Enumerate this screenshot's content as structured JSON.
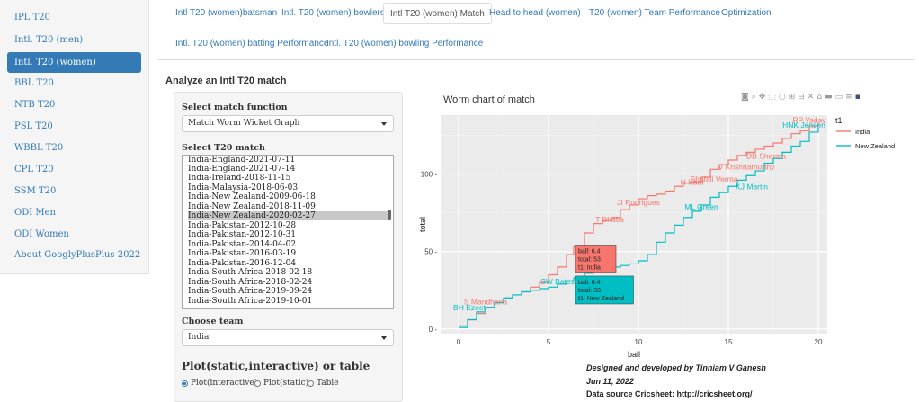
{
  "sidebar": {
    "items": [
      {
        "label": "IPL T20"
      },
      {
        "label": "Intl. T20 (men)"
      },
      {
        "label": "Intl. T20 (women)"
      },
      {
        "label": "BBL T20"
      },
      {
        "label": "NTB T20"
      },
      {
        "label": "PSL T20"
      },
      {
        "label": "WBBL T20"
      },
      {
        "label": "CPL T20"
      },
      {
        "label": "SSM T20"
      },
      {
        "label": "ODI Men"
      },
      {
        "label": "ODI Women"
      },
      {
        "label": "About GooglyPlusPlus 2022"
      }
    ]
  },
  "tabs": [
    {
      "label": "Intl T20 (women)batsman"
    },
    {
      "label": "Intl. T20 (women) bowlers"
    },
    {
      "label": "Intl T20 (women) Match"
    },
    {
      "label": "Head to head (women)"
    },
    {
      "label": "T20 (women) Team Performance"
    },
    {
      "label": "Optimization"
    },
    {
      "label": "Intl. T20 (women) batting Performance"
    },
    {
      "label": "Intl. T20 (women) bowling Performance"
    }
  ],
  "page_title": "Analyze an Intl T20 match",
  "controls": {
    "match_function_label": "Select match function",
    "match_function_value": "Match Worm Wicket Graph",
    "match_label": "Select T20 match",
    "matches": [
      "India-England-2021-07-11",
      "India-England-2021-07-14",
      "India-Ireland-2018-11-15",
      "India-Malaysia-2018-06-03",
      "India-New Zealand-2009-06-18",
      "India-New Zealand-2018-11-09",
      "India-New Zealand-2020-02-27",
      "India-Pakistan-2012-10-28",
      "India-Pakistan-2012-10-31",
      "India-Pakistan-2014-04-02",
      "India-Pakistan-2016-03-19",
      "India-Pakistan-2016-12-04",
      "India-South Africa-2018-02-18",
      "India-South Africa-2018-02-24",
      "India-South Africa-2019-09-24",
      "India-South Africa-2019-10-01"
    ],
    "selected_match": "India-New Zealand-2020-02-27",
    "team_label": "Choose team",
    "team_value": "India",
    "plot_label": "Plot(static,interactive) or table",
    "radio_options": [
      "Plot(interactive)",
      "Plot(static)",
      "Table"
    ]
  },
  "chart_data": {
    "type": "line",
    "title": "Worm chart of match",
    "xlabel": "ball",
    "ylabel": "total",
    "xlim": [
      -1,
      20.5
    ],
    "ylim": [
      -3,
      138
    ],
    "xticks": [
      0,
      5,
      10,
      15,
      20
    ],
    "yticks": [
      0,
      50,
      100
    ],
    "legend_title": "t1",
    "legend_position": "right",
    "series": [
      {
        "name": "India",
        "color": "#f8766d",
        "x": [
          0,
          0.5,
          1,
          1.5,
          2,
          2.5,
          3,
          3.5,
          4,
          4.5,
          5,
          5.5,
          6,
          6.4,
          7,
          7.5,
          8,
          8.5,
          9,
          9.5,
          10,
          10.5,
          11,
          11.5,
          12,
          12.5,
          13,
          13.5,
          14,
          14.5,
          15,
          15.5,
          16,
          16.5,
          17,
          17.5,
          18,
          18.5,
          19,
          19.5,
          20
        ],
        "y": [
          2,
          6,
          10,
          14,
          17,
          20,
          22,
          24,
          27,
          30,
          35,
          40,
          48,
          53,
          62,
          68,
          70,
          72,
          77,
          80,
          84,
          86,
          87,
          89,
          92,
          94,
          95,
          98,
          103,
          106,
          109,
          112,
          114,
          116,
          118,
          120,
          123,
          126,
          128,
          131,
          133
        ]
      },
      {
        "name": "New Zealand",
        "color": "#00bfc4",
        "x": [
          0,
          0.5,
          1,
          1.5,
          2,
          2.5,
          3,
          3.5,
          4,
          4.5,
          5,
          5.5,
          6,
          6.4,
          7,
          7.5,
          8,
          8.5,
          9,
          9.5,
          10,
          10.5,
          11,
          11.5,
          12,
          12.5,
          13,
          13.5,
          14,
          14.5,
          15,
          15.5,
          16,
          16.5,
          17,
          17.5,
          18,
          18.5,
          19,
          19.5,
          20
        ],
        "y": [
          1,
          6,
          11,
          14,
          17,
          20,
          22,
          24,
          25,
          26,
          27,
          29,
          31,
          33,
          36,
          38,
          40,
          40,
          41,
          42,
          44,
          48,
          56,
          62,
          67,
          72,
          76,
          80,
          85,
          88,
          92,
          96,
          99,
          102,
          107,
          110,
          114,
          118,
          121,
          127,
          130
        ]
      }
    ],
    "wicket_labels": [
      {
        "text": "BH Ezeet",
        "x": 0.6,
        "y": 12,
        "series": "New Zealand"
      },
      {
        "text": "S Mandhana",
        "x": 1.5,
        "y": 16,
        "series": "India"
      },
      {
        "text": "SW Bates",
        "x": 5.5,
        "y": 29,
        "series": "New Zealand"
      },
      {
        "text": "T Bhatia",
        "x": 8.4,
        "y": 69,
        "series": "India"
      },
      {
        "text": "JI Rodrigues",
        "x": 10,
        "y": 80,
        "series": "India"
      },
      {
        "text": "ML Green",
        "x": 13.5,
        "y": 77,
        "series": "New Zealand"
      },
      {
        "text": "H Kaur",
        "x": 13,
        "y": 93,
        "series": "India"
      },
      {
        "text": "Shafali Verma",
        "x": 14.2,
        "y": 95,
        "series": "India"
      },
      {
        "text": "KJ Martin",
        "x": 16.3,
        "y": 90,
        "series": "New Zealand"
      },
      {
        "text": "V Krishnamurthy",
        "x": 16,
        "y": 103,
        "series": "India"
      },
      {
        "text": "DB Sharma",
        "x": 17.1,
        "y": 110,
        "series": "India"
      },
      {
        "text": "RP Yadav",
        "x": 19.5,
        "y": 133,
        "series": "India"
      },
      {
        "text": "HNK Jensen",
        "x": 19.2,
        "y": 130,
        "series": "New Zealand"
      }
    ],
    "hover_labels": [
      {
        "lines": [
          "ball:  6.4",
          "total:  53",
          "t1: India"
        ],
        "series": "India",
        "x": 6.4,
        "y": 53
      },
      {
        "lines": [
          "ball:  6.4",
          "total:  33",
          "t1: New Zealand"
        ],
        "series": "New Zealand",
        "x": 6.4,
        "y": 33
      }
    ]
  },
  "credits": {
    "line1": "Designed and developed by Tinniam V Ganesh",
    "line2": "Jun 11, 2022",
    "line3": "Data source Cricsheet: http://cricsheet.org/"
  },
  "icons": [
    "camera-icon",
    "zoom-icon",
    "pan-icon",
    "box-select-icon",
    "lasso-icon",
    "zoom-in-icon",
    "zoom-out-icon",
    "autoscale-icon",
    "reset-axes-icon",
    "spike-lines-icon",
    "hover-closest-icon",
    "hover-compare-icon",
    "plotly-logo-icon"
  ]
}
